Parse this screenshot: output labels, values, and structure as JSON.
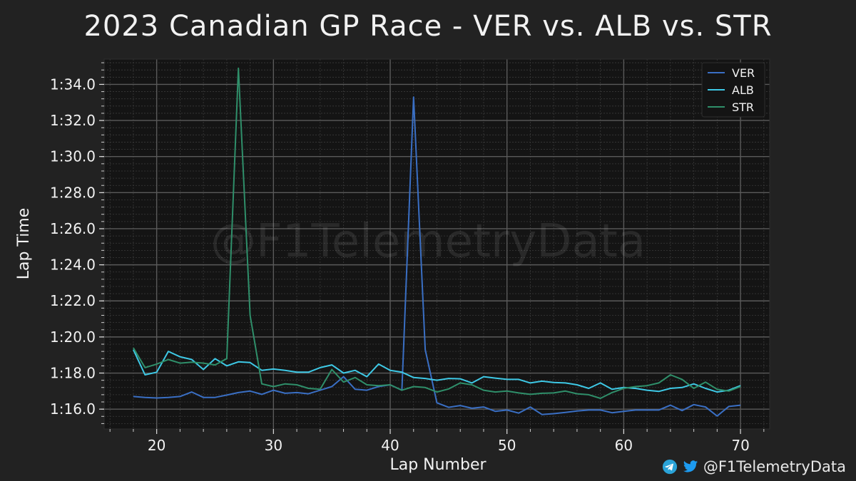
{
  "title": "2023 Canadian GP Race - VER vs. ALB vs. STR",
  "watermark": "@F1TelemetryData",
  "credit": {
    "handle": "@F1TelemetryData",
    "icons": [
      "telegram-icon",
      "twitter-icon"
    ],
    "telegram_color": "#2aa3d8",
    "twitter_color": "#1d9bf0"
  },
  "chart_data": {
    "type": "line",
    "xlabel": "Lap Number",
    "ylabel": "Lap Time",
    "xlim": [
      15.5,
      72.5
    ],
    "ylim": [
      74.9,
      95.4
    ],
    "xticks": [
      20,
      30,
      40,
      50,
      60,
      70
    ],
    "yticks": [
      {
        "value": 76,
        "label": "1:16.0"
      },
      {
        "value": 78,
        "label": "1:18.0"
      },
      {
        "value": 80,
        "label": "1:20.0"
      },
      {
        "value": 82,
        "label": "1:22.0"
      },
      {
        "value": 84,
        "label": "1:24.0"
      },
      {
        "value": 86,
        "label": "1:26.0"
      },
      {
        "value": 88,
        "label": "1:28.0"
      },
      {
        "value": 90,
        "label": "1:30.0"
      },
      {
        "value": 92,
        "label": "1:32.0"
      },
      {
        "value": 94,
        "label": "1:34.0"
      }
    ],
    "grid": true,
    "legend": "top-right",
    "x": [
      18,
      19,
      20,
      21,
      22,
      23,
      24,
      25,
      26,
      27,
      28,
      29,
      30,
      31,
      32,
      33,
      34,
      35,
      36,
      37,
      38,
      39,
      40,
      41,
      42,
      43,
      44,
      45,
      46,
      47,
      48,
      49,
      50,
      51,
      52,
      53,
      54,
      55,
      56,
      57,
      58,
      59,
      60,
      61,
      62,
      63,
      64,
      65,
      66,
      67,
      68,
      69,
      70
    ],
    "series": [
      {
        "name": "VER",
        "color": "#3a6fc4",
        "values": [
          76.7,
          76.65,
          76.62,
          76.65,
          76.7,
          76.95,
          76.65,
          76.65,
          76.78,
          76.92,
          77.0,
          76.82,
          77.05,
          76.88,
          76.92,
          76.85,
          77.05,
          77.25,
          77.8,
          77.1,
          77.05,
          77.25,
          77.35,
          77.05,
          93.3,
          79.3,
          76.35,
          76.1,
          76.2,
          76.05,
          76.12,
          75.88,
          75.95,
          75.78,
          76.12,
          75.7,
          75.75,
          75.82,
          75.9,
          75.95,
          75.95,
          75.8,
          75.88,
          75.95,
          75.95,
          75.95,
          76.22,
          75.92,
          76.25,
          76.12,
          75.62,
          76.15,
          76.22
        ]
      },
      {
        "name": "ALB",
        "color": "#3ec9e6",
        "values": [
          79.3,
          77.9,
          78.05,
          79.2,
          78.9,
          78.75,
          78.2,
          78.8,
          78.4,
          78.62,
          78.58,
          78.15,
          78.22,
          78.15,
          78.05,
          78.05,
          78.3,
          78.45,
          78.0,
          78.15,
          77.8,
          78.5,
          78.15,
          78.05,
          77.75,
          77.7,
          77.6,
          77.7,
          77.68,
          77.45,
          77.8,
          77.72,
          77.65,
          77.65,
          77.45,
          77.55,
          77.48,
          77.45,
          77.35,
          77.15,
          77.45,
          77.1,
          77.2,
          77.15,
          77.05,
          76.98,
          77.15,
          77.2,
          77.4,
          77.15,
          76.95,
          77.05,
          77.3
        ]
      },
      {
        "name": "STR",
        "color": "#2f8f6a",
        "values": [
          79.4,
          78.3,
          78.5,
          78.75,
          78.55,
          78.6,
          78.55,
          78.45,
          78.8,
          94.9,
          81.2,
          77.4,
          77.25,
          77.4,
          77.35,
          77.15,
          77.1,
          78.2,
          77.5,
          77.75,
          77.35,
          77.3,
          77.35,
          77.05,
          77.25,
          77.2,
          76.95,
          77.12,
          77.45,
          77.35,
          77.05,
          76.95,
          77.0,
          76.9,
          76.82,
          76.88,
          76.9,
          77.0,
          76.85,
          76.8,
          76.6,
          76.92,
          77.15,
          77.25,
          77.3,
          77.45,
          77.9,
          77.65,
          77.15,
          77.5,
          77.1,
          77.0,
          77.25
        ]
      }
    ]
  }
}
